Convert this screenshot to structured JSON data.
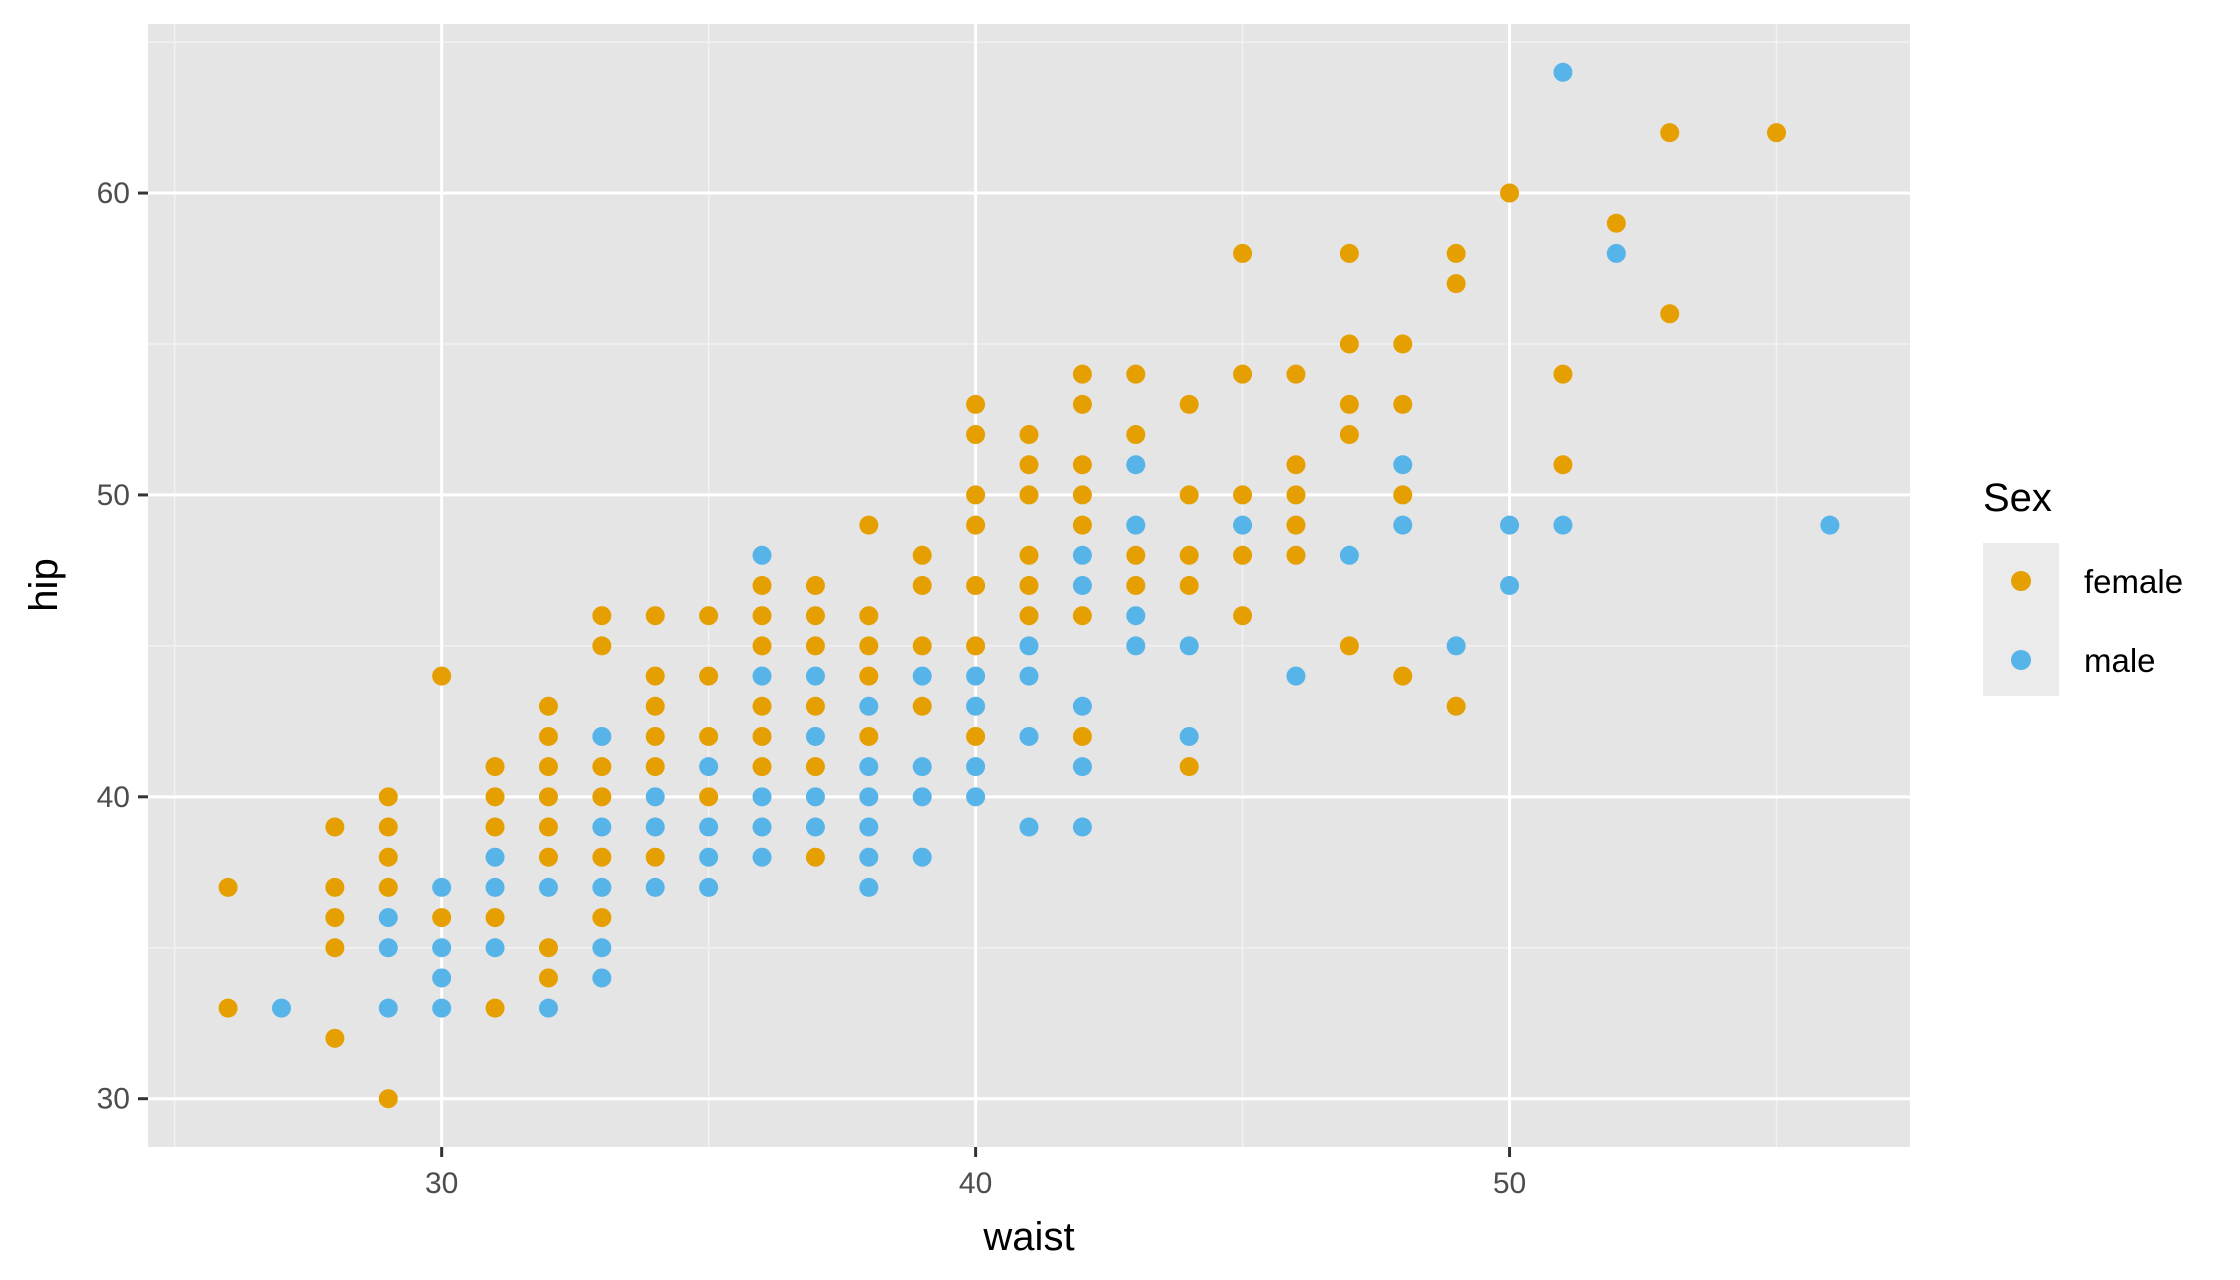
{
  "chart_data": {
    "type": "scatter",
    "xlabel": "waist",
    "ylabel": "hip",
    "xlim": [
      24.5,
      57.5
    ],
    "ylim": [
      28.4,
      65.6
    ],
    "x_ticks": [
      30,
      40,
      50
    ],
    "y_ticks": [
      30,
      40,
      50,
      60
    ],
    "grid": true,
    "legend": {
      "title": "Sex",
      "position": "right",
      "entries": [
        {
          "label": "female",
          "color": "#E69F00"
        },
        {
          "label": "male",
          "color": "#56B4E9"
        }
      ]
    },
    "series": [
      {
        "name": "female",
        "color": "#E69F00",
        "points": [
          [
            26,
            37
          ],
          [
            26,
            33
          ],
          [
            28,
            39
          ],
          [
            28,
            37
          ],
          [
            28,
            36
          ],
          [
            28,
            35
          ],
          [
            28,
            32
          ],
          [
            29,
            40
          ],
          [
            29,
            39
          ],
          [
            29,
            38
          ],
          [
            29,
            37
          ],
          [
            29,
            30
          ],
          [
            30,
            44
          ],
          [
            30,
            36
          ],
          [
            31,
            41
          ],
          [
            31,
            40
          ],
          [
            31,
            39
          ],
          [
            31,
            36
          ],
          [
            31,
            33
          ],
          [
            32,
            43
          ],
          [
            32,
            42
          ],
          [
            32,
            41
          ],
          [
            32,
            40
          ],
          [
            32,
            39
          ],
          [
            32,
            38
          ],
          [
            32,
            35
          ],
          [
            32,
            34
          ],
          [
            33,
            46
          ],
          [
            33,
            45
          ],
          [
            33,
            41
          ],
          [
            33,
            40
          ],
          [
            33,
            38
          ],
          [
            33,
            36
          ],
          [
            34,
            46
          ],
          [
            34,
            44
          ],
          [
            34,
            43
          ],
          [
            34,
            42
          ],
          [
            34,
            41
          ],
          [
            34,
            38
          ],
          [
            35,
            46
          ],
          [
            35,
            44
          ],
          [
            35,
            42
          ],
          [
            35,
            40
          ],
          [
            36,
            47
          ],
          [
            36,
            46
          ],
          [
            36,
            45
          ],
          [
            36,
            43
          ],
          [
            36,
            42
          ],
          [
            36,
            41
          ],
          [
            37,
            47
          ],
          [
            37,
            46
          ],
          [
            37,
            45
          ],
          [
            37,
            43
          ],
          [
            37,
            41
          ],
          [
            37,
            38
          ],
          [
            38,
            49
          ],
          [
            38,
            46
          ],
          [
            38,
            45
          ],
          [
            38,
            44
          ],
          [
            38,
            42
          ],
          [
            39,
            48
          ],
          [
            39,
            47
          ],
          [
            39,
            45
          ],
          [
            39,
            43
          ],
          [
            40,
            53
          ],
          [
            40,
            52
          ],
          [
            40,
            50
          ],
          [
            40,
            49
          ],
          [
            40,
            47
          ],
          [
            40,
            45
          ],
          [
            40,
            42
          ],
          [
            41,
            52
          ],
          [
            41,
            51
          ],
          [
            41,
            50
          ],
          [
            41,
            48
          ],
          [
            41,
            47
          ],
          [
            41,
            46
          ],
          [
            42,
            54
          ],
          [
            42,
            53
          ],
          [
            42,
            51
          ],
          [
            42,
            50
          ],
          [
            42,
            49
          ],
          [
            42,
            46
          ],
          [
            42,
            42
          ],
          [
            43,
            54
          ],
          [
            43,
            52
          ],
          [
            43,
            48
          ],
          [
            43,
            47
          ],
          [
            44,
            53
          ],
          [
            44,
            50
          ],
          [
            44,
            48
          ],
          [
            44,
            47
          ],
          [
            44,
            41
          ],
          [
            45,
            58
          ],
          [
            45,
            54
          ],
          [
            45,
            50
          ],
          [
            45,
            48
          ],
          [
            45,
            46
          ],
          [
            46,
            54
          ],
          [
            46,
            51
          ],
          [
            46,
            50
          ],
          [
            46,
            49
          ],
          [
            46,
            48
          ],
          [
            47,
            58
          ],
          [
            47,
            55
          ],
          [
            47,
            53
          ],
          [
            47,
            52
          ],
          [
            47,
            45
          ],
          [
            48,
            55
          ],
          [
            48,
            53
          ],
          [
            48,
            50
          ],
          [
            48,
            44
          ],
          [
            49,
            58
          ],
          [
            49,
            57
          ],
          [
            49,
            43
          ],
          [
            50,
            60
          ],
          [
            51,
            54
          ],
          [
            51,
            51
          ],
          [
            52,
            59
          ],
          [
            53,
            62
          ],
          [
            53,
            56
          ],
          [
            55,
            62
          ]
        ]
      },
      {
        "name": "male",
        "color": "#56B4E9",
        "points": [
          [
            27,
            33
          ],
          [
            29,
            36
          ],
          [
            29,
            35
          ],
          [
            29,
            33
          ],
          [
            30,
            37
          ],
          [
            30,
            35
          ],
          [
            30,
            34
          ],
          [
            30,
            33
          ],
          [
            31,
            38
          ],
          [
            31,
            37
          ],
          [
            31,
            35
          ],
          [
            32,
            37
          ],
          [
            32,
            33
          ],
          [
            33,
            42
          ],
          [
            33,
            39
          ],
          [
            33,
            37
          ],
          [
            33,
            35
          ],
          [
            33,
            34
          ],
          [
            34,
            40
          ],
          [
            34,
            39
          ],
          [
            34,
            37
          ],
          [
            35,
            41
          ],
          [
            35,
            39
          ],
          [
            35,
            38
          ],
          [
            35,
            37
          ],
          [
            36,
            48
          ],
          [
            36,
            44
          ],
          [
            36,
            40
          ],
          [
            36,
            39
          ],
          [
            36,
            38
          ],
          [
            37,
            44
          ],
          [
            37,
            42
          ],
          [
            37,
            40
          ],
          [
            37,
            39
          ],
          [
            38,
            43
          ],
          [
            38,
            41
          ],
          [
            38,
            40
          ],
          [
            38,
            39
          ],
          [
            38,
            38
          ],
          [
            38,
            37
          ],
          [
            39,
            44
          ],
          [
            39,
            41
          ],
          [
            39,
            40
          ],
          [
            39,
            38
          ],
          [
            40,
            44
          ],
          [
            40,
            43
          ],
          [
            40,
            41
          ],
          [
            40,
            40
          ],
          [
            41,
            45
          ],
          [
            41,
            44
          ],
          [
            41,
            42
          ],
          [
            41,
            39
          ],
          [
            42,
            48
          ],
          [
            42,
            47
          ],
          [
            42,
            43
          ],
          [
            42,
            41
          ],
          [
            42,
            39
          ],
          [
            43,
            51
          ],
          [
            43,
            49
          ],
          [
            43,
            46
          ],
          [
            43,
            45
          ],
          [
            44,
            45
          ],
          [
            44,
            42
          ],
          [
            45,
            49
          ],
          [
            46,
            44
          ],
          [
            47,
            48
          ],
          [
            48,
            51
          ],
          [
            48,
            49
          ],
          [
            49,
            45
          ],
          [
            50,
            49
          ],
          [
            50,
            47
          ],
          [
            51,
            64
          ],
          [
            51,
            49
          ],
          [
            52,
            58
          ],
          [
            56,
            49
          ]
        ]
      }
    ]
  }
}
